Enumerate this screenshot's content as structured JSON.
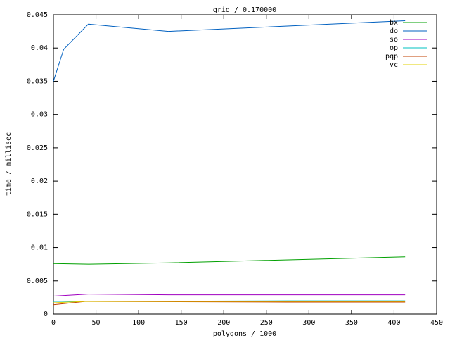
{
  "chart_data": {
    "type": "line",
    "title": "grid / 0.170000",
    "x_label": "polygons / 1000",
    "y_label": "time / millisec",
    "xlim": [
      0,
      450
    ],
    "xticks": [
      0,
      50,
      100,
      150,
      200,
      250,
      300,
      350,
      400,
      450
    ],
    "ylim": [
      0,
      0.045
    ],
    "yticks": [
      0,
      0.005,
      0.01,
      0.015,
      0.02,
      0.025,
      0.03,
      0.035,
      0.04,
      0.045
    ],
    "grid": false,
    "legend": "top-right",
    "series": [
      {
        "name": "bx",
        "color": "#00a000",
        "x": [
          0,
          41,
          135,
          413
        ],
        "values": [
          0.0076,
          0.0075,
          0.0077,
          0.0086
        ]
      },
      {
        "name": "do",
        "color": "#0060c0",
        "x": [
          0,
          12,
          41,
          135,
          413
        ],
        "values": [
          0.035,
          0.0398,
          0.0436,
          0.0425,
          0.0441
        ]
      },
      {
        "name": "so",
        "color": "#a000c0",
        "x": [
          0,
          41,
          135,
          413
        ],
        "values": [
          0.0027,
          0.003,
          0.0029,
          0.0029
        ]
      },
      {
        "name": "op",
        "color": "#00c0c0",
        "x": [
          0,
          41,
          275,
          413
        ],
        "values": [
          0.0019,
          0.0019,
          0.002,
          0.002
        ]
      },
      {
        "name": "pqp",
        "color": "#c04000",
        "x": [
          0,
          38,
          275,
          413
        ],
        "values": [
          0.0014,
          0.0019,
          0.0018,
          0.0018
        ]
      },
      {
        "name": "vc",
        "color": "#e0d000",
        "x": [
          0,
          38,
          413
        ],
        "values": [
          0.0017,
          0.0019,
          0.0019
        ]
      }
    ]
  }
}
